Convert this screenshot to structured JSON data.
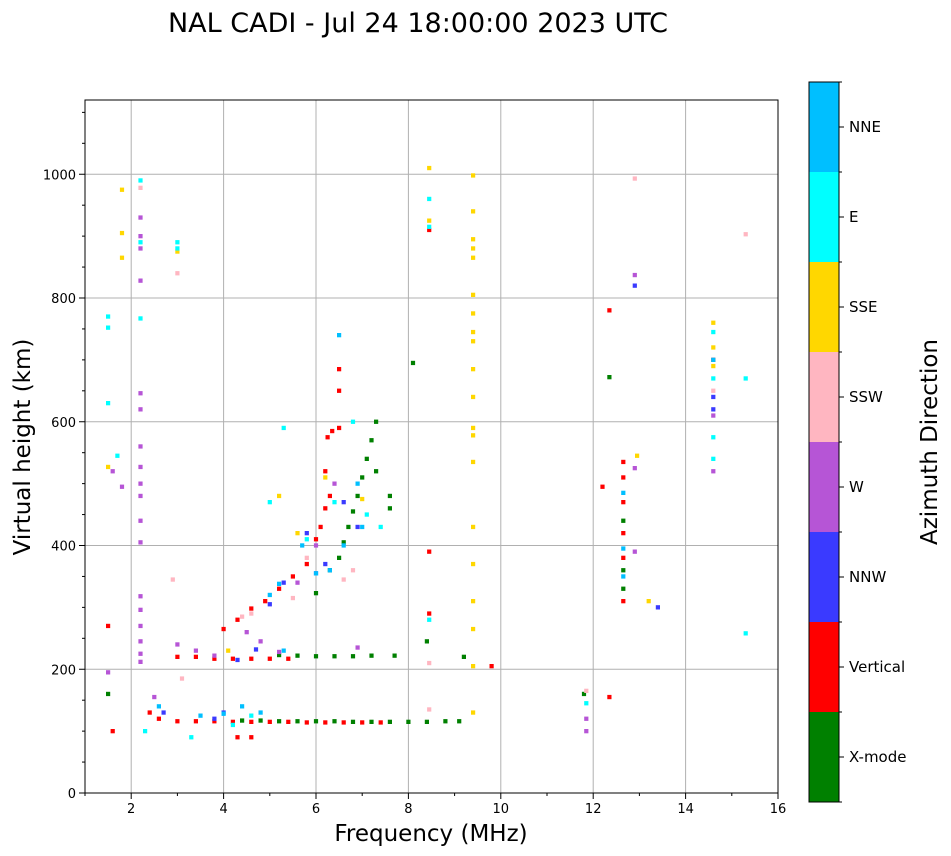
{
  "chart_data": {
    "type": "scatter",
    "title": "NAL CADI - Jul 24 18:00:00 2023 UTC",
    "xlabel": "Frequency (MHz)",
    "ylabel": "Virtual height (km)",
    "xlim": [
      1,
      16
    ],
    "ylim": [
      0,
      1120
    ],
    "xticks": [
      2,
      4,
      6,
      8,
      10,
      12,
      14,
      16
    ],
    "yticks": [
      0,
      200,
      400,
      600,
      800,
      1000
    ],
    "grid": true,
    "colorbar": {
      "label": "Azimuth Direction",
      "categories": [
        {
          "name": "X-mode",
          "color": "#008000"
        },
        {
          "name": "Vertical",
          "color": "#ff0000"
        },
        {
          "name": "NNW",
          "color": "#3a3aff"
        },
        {
          "name": "W",
          "color": "#b655d6"
        },
        {
          "name": "SSW",
          "color": "#ffb6c1"
        },
        {
          "name": "SSE",
          "color": "#ffd700"
        },
        {
          "name": "E",
          "color": "#00ffff"
        },
        {
          "name": "NNE",
          "color": "#00bfff"
        }
      ]
    },
    "series": [
      {
        "name": "X-mode",
        "points": [
          [
            4.4,
            117
          ],
          [
            4.8,
            117
          ],
          [
            5.2,
            116
          ],
          [
            5.6,
            116
          ],
          [
            6.0,
            116
          ],
          [
            6.4,
            116
          ],
          [
            6.8,
            115
          ],
          [
            7.2,
            115
          ],
          [
            7.6,
            115
          ],
          [
            8.0,
            115
          ],
          [
            8.4,
            115
          ],
          [
            8.8,
            116
          ],
          [
            9.1,
            116
          ],
          [
            9.2,
            220
          ],
          [
            5.2,
            223
          ],
          [
            5.6,
            222
          ],
          [
            6.0,
            221
          ],
          [
            6.4,
            221
          ],
          [
            6.8,
            221
          ],
          [
            7.2,
            222
          ],
          [
            7.7,
            222
          ],
          [
            6.0,
            323
          ],
          [
            6.3,
            360
          ],
          [
            6.5,
            380
          ],
          [
            6.6,
            405
          ],
          [
            6.7,
            430
          ],
          [
            6.8,
            455
          ],
          [
            6.9,
            480
          ],
          [
            7.0,
            510
          ],
          [
            7.1,
            540
          ],
          [
            7.2,
            570
          ],
          [
            7.3,
            600
          ],
          [
            7.6,
            480
          ],
          [
            7.6,
            460
          ],
          [
            7.3,
            520
          ],
          [
            8.1,
            695
          ],
          [
            12.35,
            672
          ],
          [
            11.8,
            160
          ],
          [
            1.5,
            160
          ],
          [
            8.4,
            245
          ],
          [
            12.65,
            330
          ],
          [
            12.65,
            360
          ],
          [
            12.65,
            440
          ]
        ]
      },
      {
        "name": "Vertical",
        "points": [
          [
            1.5,
            270
          ],
          [
            1.6,
            100
          ],
          [
            2.4,
            130
          ],
          [
            2.6,
            120
          ],
          [
            3.0,
            116
          ],
          [
            3.4,
            116
          ],
          [
            3.8,
            116
          ],
          [
            4.2,
            115
          ],
          [
            4.6,
            115
          ],
          [
            5.0,
            115
          ],
          [
            5.4,
            115
          ],
          [
            5.8,
            114
          ],
          [
            6.2,
            114
          ],
          [
            6.6,
            114
          ],
          [
            7.0,
            114
          ],
          [
            7.4,
            114
          ],
          [
            3.0,
            220
          ],
          [
            3.4,
            220
          ],
          [
            3.8,
            217
          ],
          [
            4.2,
            217
          ],
          [
            4.6,
            217
          ],
          [
            5.0,
            217
          ],
          [
            5.4,
            217
          ],
          [
            4.3,
            90
          ],
          [
            4.6,
            90
          ],
          [
            4.0,
            265
          ],
          [
            4.3,
            280
          ],
          [
            4.6,
            298
          ],
          [
            4.9,
            310
          ],
          [
            5.2,
            330
          ],
          [
            5.5,
            350
          ],
          [
            5.8,
            370
          ],
          [
            6.0,
            410
          ],
          [
            6.1,
            430
          ],
          [
            6.2,
            460
          ],
          [
            6.3,
            480
          ],
          [
            6.2,
            520
          ],
          [
            6.25,
            575
          ],
          [
            6.35,
            585
          ],
          [
            6.5,
            590
          ],
          [
            6.5,
            650
          ],
          [
            6.5,
            685
          ],
          [
            8.45,
            910
          ],
          [
            8.45,
            390
          ],
          [
            8.45,
            290
          ],
          [
            9.8,
            205
          ],
          [
            12.35,
            780
          ],
          [
            12.35,
            155
          ],
          [
            12.2,
            495
          ],
          [
            12.65,
            310
          ],
          [
            12.65,
            380
          ],
          [
            12.65,
            420
          ],
          [
            12.65,
            470
          ],
          [
            12.65,
            510
          ],
          [
            12.65,
            535
          ],
          [
            14.6,
            700
          ]
        ]
      },
      {
        "name": "NNW",
        "points": [
          [
            2.7,
            130
          ],
          [
            3.8,
            120
          ],
          [
            4.0,
            130
          ],
          [
            4.3,
            215
          ],
          [
            4.7,
            232
          ],
          [
            5.0,
            305
          ],
          [
            5.3,
            340
          ],
          [
            5.8,
            420
          ],
          [
            6.0,
            355
          ],
          [
            6.2,
            370
          ],
          [
            6.6,
            470
          ],
          [
            6.9,
            430
          ],
          [
            12.9,
            820
          ],
          [
            13.4,
            300
          ],
          [
            14.6,
            640
          ],
          [
            14.6,
            620
          ]
        ]
      },
      {
        "name": "W",
        "points": [
          [
            2.2,
            930
          ],
          [
            2.2,
            900
          ],
          [
            2.2,
            880
          ],
          [
            2.2,
            828
          ],
          [
            2.2,
            646
          ],
          [
            2.2,
            620
          ],
          [
            2.2,
            560
          ],
          [
            2.2,
            527
          ],
          [
            2.2,
            500
          ],
          [
            2.2,
            480
          ],
          [
            2.2,
            440
          ],
          [
            2.2,
            405
          ],
          [
            2.2,
            318
          ],
          [
            2.2,
            296
          ],
          [
            2.2,
            270
          ],
          [
            2.2,
            245
          ],
          [
            2.2,
            225
          ],
          [
            2.2,
            212
          ],
          [
            1.5,
            195
          ],
          [
            1.6,
            520
          ],
          [
            1.8,
            495
          ],
          [
            2.5,
            155
          ],
          [
            3.0,
            240
          ],
          [
            3.4,
            230
          ],
          [
            3.8,
            222
          ],
          [
            4.5,
            260
          ],
          [
            4.8,
            245
          ],
          [
            5.2,
            228
          ],
          [
            5.6,
            340
          ],
          [
            6.0,
            400
          ],
          [
            6.4,
            500
          ],
          [
            6.9,
            235
          ],
          [
            12.9,
            837
          ],
          [
            12.9,
            525
          ],
          [
            12.9,
            390
          ],
          [
            11.85,
            100
          ],
          [
            11.85,
            120
          ],
          [
            14.6,
            520
          ],
          [
            14.6,
            610
          ]
        ]
      },
      {
        "name": "SSW",
        "points": [
          [
            2.2,
            978
          ],
          [
            3.0,
            840
          ],
          [
            2.9,
            345
          ],
          [
            3.1,
            185
          ],
          [
            4.4,
            285
          ],
          [
            4.6,
            290
          ],
          [
            5.5,
            315
          ],
          [
            5.8,
            380
          ],
          [
            6.6,
            345
          ],
          [
            6.8,
            360
          ],
          [
            8.45,
            135
          ],
          [
            8.45,
            210
          ],
          [
            11.85,
            165
          ],
          [
            12.9,
            993
          ],
          [
            15.3,
            903
          ],
          [
            14.6,
            650
          ]
        ]
      },
      {
        "name": "SSE",
        "points": [
          [
            1.8,
            975
          ],
          [
            1.8,
            905
          ],
          [
            1.8,
            865
          ],
          [
            1.5,
            527
          ],
          [
            3.0,
            875
          ],
          [
            4.1,
            230
          ],
          [
            5.2,
            480
          ],
          [
            5.6,
            420
          ],
          [
            6.2,
            510
          ],
          [
            7.0,
            475
          ],
          [
            8.45,
            1010
          ],
          [
            8.45,
            925
          ],
          [
            9.4,
            998
          ],
          [
            9.4,
            940
          ],
          [
            9.4,
            895
          ],
          [
            9.4,
            880
          ],
          [
            9.4,
            865
          ],
          [
            9.4,
            805
          ],
          [
            9.4,
            775
          ],
          [
            9.4,
            745
          ],
          [
            9.4,
            730
          ],
          [
            9.4,
            685
          ],
          [
            9.4,
            640
          ],
          [
            9.4,
            590
          ],
          [
            9.4,
            578
          ],
          [
            9.4,
            535
          ],
          [
            9.4,
            430
          ],
          [
            9.4,
            370
          ],
          [
            9.4,
            310
          ],
          [
            9.4,
            265
          ],
          [
            9.4,
            205
          ],
          [
            9.4,
            130
          ],
          [
            12.95,
            545
          ],
          [
            13.2,
            310
          ],
          [
            14.6,
            760
          ],
          [
            14.6,
            720
          ],
          [
            14.6,
            690
          ]
        ]
      },
      {
        "name": "E",
        "points": [
          [
            1.5,
            770
          ],
          [
            1.5,
            752
          ],
          [
            1.5,
            630
          ],
          [
            1.7,
            545
          ],
          [
            2.2,
            990
          ],
          [
            2.2,
            890
          ],
          [
            2.2,
            767
          ],
          [
            3.0,
            890
          ],
          [
            3.0,
            880
          ],
          [
            3.3,
            90
          ],
          [
            2.3,
            100
          ],
          [
            4.2,
            110
          ],
          [
            4.6,
            125
          ],
          [
            5.0,
            470
          ],
          [
            5.3,
            590
          ],
          [
            5.8,
            410
          ],
          [
            6.4,
            470
          ],
          [
            6.8,
            600
          ],
          [
            7.1,
            450
          ],
          [
            7.4,
            430
          ],
          [
            8.45,
            960
          ],
          [
            8.45,
            915
          ],
          [
            8.45,
            280
          ],
          [
            11.85,
            145
          ],
          [
            14.6,
            575
          ],
          [
            14.6,
            540
          ],
          [
            14.6,
            670
          ],
          [
            14.6,
            745
          ],
          [
            15.3,
            670
          ],
          [
            15.3,
            258
          ]
        ]
      },
      {
        "name": "NNE",
        "points": [
          [
            2.6,
            140
          ],
          [
            3.5,
            125
          ],
          [
            4.0,
            128
          ],
          [
            4.4,
            140
          ],
          [
            4.8,
            130
          ],
          [
            5.0,
            320
          ],
          [
            5.2,
            338
          ],
          [
            5.7,
            400
          ],
          [
            6.0,
            355
          ],
          [
            6.3,
            360
          ],
          [
            6.5,
            740
          ],
          [
            6.6,
            400
          ],
          [
            6.9,
            500
          ],
          [
            7.0,
            430
          ],
          [
            5.3,
            230
          ],
          [
            12.65,
            485
          ],
          [
            12.65,
            395
          ],
          [
            12.65,
            350
          ],
          [
            14.6,
            700
          ]
        ]
      }
    ]
  }
}
